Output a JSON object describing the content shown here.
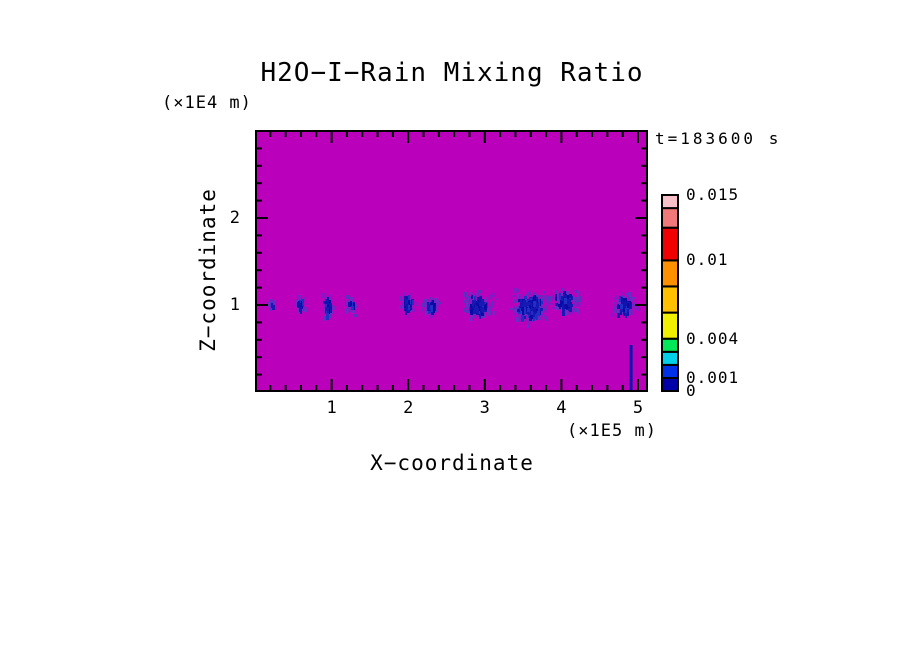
{
  "title": "H2O−I−Rain Mixing Ratio",
  "time_label": "t=183600 s",
  "axes": {
    "x_label": "X−coordinate",
    "x_unit": "(×1E5 m)",
    "x_tick_labels": [
      "1",
      "2",
      "3",
      "4",
      "5"
    ],
    "z_label": "Z−coordinate",
    "z_unit": "(×1E4 m)",
    "z_tick_labels": [
      "1",
      "2"
    ]
  },
  "colorbar": {
    "labels": [
      {
        "text": "0.015",
        "value": 0.015
      },
      {
        "text": "0.01",
        "value": 0.01
      },
      {
        "text": "0.004",
        "value": 0.004
      },
      {
        "text": "0.001",
        "value": 0.001
      },
      {
        "text": "0",
        "value": 0.0
      }
    ]
  },
  "chart_data": {
    "type": "heatmap",
    "title": "H2O−I−Rain Mixing Ratio",
    "xlabel": "X−coordinate",
    "x_unit_scale": "×1E5 m",
    "ylabel": "Z−coordinate",
    "y_unit_scale": "×1E4 m",
    "time_seconds": 183600,
    "x_range": [
      0,
      5.12
    ],
    "z_range": [
      0,
      3.01
    ],
    "x_major_ticks": [
      1,
      2,
      3,
      4,
      5
    ],
    "z_major_ticks": [
      1,
      2
    ],
    "minor_tick_step": 0.2,
    "grid": false,
    "legend_position": "right-colorbar",
    "background_value": 0,
    "background_color": "#bb00bb",
    "levels": [
      0,
      0.001,
      0.002,
      0.003,
      0.004,
      0.006,
      0.008,
      0.01,
      0.0125,
      0.014,
      0.015
    ],
    "level_colors": [
      "#0000a8",
      "#0030e8",
      "#00d0e8",
      "#00e858",
      "#f0f000",
      "#ffc000",
      "#ff9000",
      "#f00000",
      "#f07878",
      "#f8c0c8"
    ],
    "cell_outer_colors": [
      "#7b1fc4",
      "#6a2cc6",
      "#8b14c4",
      "#5b2fc2"
    ],
    "cell_core_colors": [
      "#1212ac",
      "#0a0aa6",
      "#2030c4",
      "#1818b4"
    ],
    "rain_cells": [
      {
        "x": 0.22,
        "z": 1.02,
        "rx": 0.06,
        "rz": 0.1,
        "core": 0.1,
        "peak_value": 0.0005
      },
      {
        "x": 0.59,
        "z": 1.02,
        "rx": 0.09,
        "rz": 0.16,
        "core": 0.45,
        "peak_value": 0.001
      },
      {
        "x": 0.94,
        "z": 1.0,
        "rx": 0.1,
        "rz": 0.19,
        "core": 0.55,
        "peak_value": 0.0015
      },
      {
        "x": 1.25,
        "z": 1.01,
        "rx": 0.09,
        "rz": 0.16,
        "core": 0.25,
        "peak_value": 0.001
      },
      {
        "x": 1.99,
        "z": 1.03,
        "rx": 0.14,
        "rz": 0.19,
        "core": 0.55,
        "peak_value": 0.0015
      },
      {
        "x": 2.29,
        "z": 1.0,
        "rx": 0.15,
        "rz": 0.17,
        "core": 0.45,
        "peak_value": 0.001
      },
      {
        "x": 2.91,
        "z": 1.0,
        "rx": 0.28,
        "rz": 0.22,
        "core": 0.5,
        "peak_value": 0.0015
      },
      {
        "x": 3.59,
        "z": 0.99,
        "rx": 0.34,
        "rz": 0.27,
        "core": 0.7,
        "peak_value": 0.002
      },
      {
        "x": 4.05,
        "z": 1.05,
        "rx": 0.26,
        "rz": 0.2,
        "core": 0.45,
        "peak_value": 0.0015
      },
      {
        "x": 4.82,
        "z": 1.01,
        "rx": 0.22,
        "rz": 0.19,
        "core": 0.6,
        "peak_value": 0.002
      }
    ],
    "fall_streak": {
      "x": 4.91,
      "z_bottom": 0.0,
      "z_top": 0.54,
      "value": 0.001
    }
  }
}
